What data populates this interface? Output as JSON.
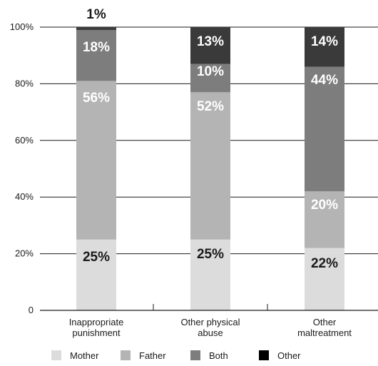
{
  "chart_data": {
    "type": "bar",
    "stacked": true,
    "categories": [
      [
        "Inappropriate",
        "punishment"
      ],
      [
        "Other physical",
        "abuse"
      ],
      [
        "Other",
        "maltreatment"
      ]
    ],
    "y_ticks": [
      "0",
      "20%",
      "40%",
      "60%",
      "80%",
      "100%"
    ],
    "ylim": [
      0,
      100
    ],
    "grid": true,
    "legend_position": "bottom",
    "series": [
      {
        "name": "Mother",
        "color": "#dcdcdc",
        "values": [
          25,
          25,
          22
        ],
        "labels": [
          "25%",
          "25%",
          "22%"
        ],
        "label_color": "#1a1a1a"
      },
      {
        "name": "Father",
        "color": "#b4b4b4",
        "values": [
          56,
          52,
          20
        ],
        "labels": [
          "56%",
          "52%",
          "20%"
        ],
        "label_color": "#ffffff"
      },
      {
        "name": "Both",
        "color": "#7d7d7d",
        "values": [
          18,
          10,
          44
        ],
        "labels": [
          "18%",
          "10%",
          "44%"
        ],
        "label_color": "#ffffff"
      },
      {
        "name": "Other",
        "color": "#3a3a3a",
        "values": [
          1,
          13,
          14
        ],
        "labels": [
          "1%",
          "13%",
          "14%"
        ],
        "label_color": "#ffffff"
      }
    ]
  }
}
